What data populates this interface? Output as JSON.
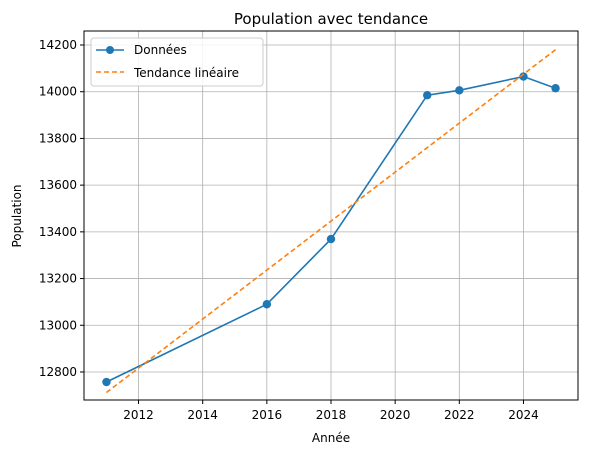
{
  "chart_data": {
    "type": "line",
    "title": "Population avec tendance",
    "xlabel": "Année",
    "ylabel": "Population",
    "xlim": [
      2010.3,
      2025.7
    ],
    "ylim": [
      12680,
      14260
    ],
    "x_ticks": [
      2012,
      2014,
      2016,
      2018,
      2020,
      2022,
      2024
    ],
    "y_ticks": [
      12800,
      13000,
      13200,
      13400,
      13600,
      13800,
      14000,
      14200
    ],
    "grid": true,
    "legend_position": "top-left",
    "series": [
      {
        "name": "Données",
        "style": "solid-markers",
        "color": "#1f77b4",
        "x": [
          2011,
          2016,
          2018,
          2021,
          2022,
          2024,
          2025
        ],
        "y": [
          12757,
          13090,
          13369,
          13985,
          14006,
          14065,
          14015
        ]
      },
      {
        "name": "Tendance linéaire",
        "style": "dashed",
        "color": "#ff7f0e",
        "x": [
          2011,
          2025
        ],
        "y": [
          12712,
          14180
        ]
      }
    ]
  }
}
